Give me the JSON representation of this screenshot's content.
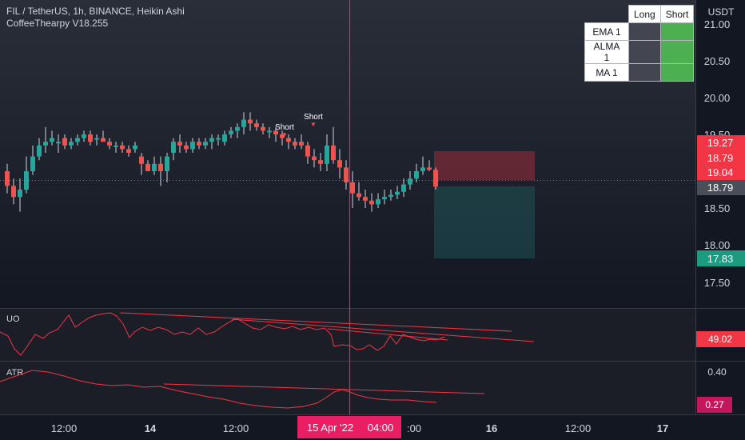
{
  "header": {
    "symbol": "FIL / TetherUS, 1h, BINANCE, Heikin Ashi",
    "indicator": "CoffeeThearpy V18.255"
  },
  "signal_table": {
    "headers": [
      "Long",
      "Short"
    ],
    "rows": [
      {
        "label": "EMA 1",
        "long": "neutral",
        "short": "active"
      },
      {
        "label": "ALMA 1",
        "long": "neutral",
        "short": "active"
      },
      {
        "label": "MA 1",
        "long": "neutral",
        "short": "active"
      }
    ]
  },
  "price_axis": {
    "unit": "USDT",
    "ticks": [
      "21.00",
      "20.50",
      "20.00",
      "19.50",
      "18.50",
      "18.00",
      "17.50"
    ]
  },
  "price_badges": [
    {
      "value": "19.27",
      "color": "#f23645"
    },
    {
      "value": "18.79",
      "color": "#f23645"
    },
    {
      "value": "19.04",
      "color": "#f23645"
    },
    {
      "value": "18.79",
      "color": "#4a4e59"
    },
    {
      "value": "17.83",
      "color": "#1e9a80"
    }
  ],
  "signals": [
    {
      "label": "Short"
    },
    {
      "label": "Short"
    }
  ],
  "panes": {
    "uo": {
      "title": "UO",
      "value": "49.02",
      "color": "#f23645"
    },
    "atr": {
      "title": "ATR",
      "tick": "0.40",
      "value": "0.27",
      "color": "#c2185b"
    }
  },
  "time_axis": {
    "ticks": [
      "12:00",
      "14",
      "12:00",
      "04:00",
      ":00",
      "16",
      "12:00",
      "17"
    ],
    "crosshair_label": "15 Apr '22"
  },
  "colors": {
    "up": "#26a69a",
    "down": "#ef5350",
    "crosshair": "#e91e63",
    "background": "#131722"
  },
  "chart_data": {
    "type": "candlestick",
    "title": "FIL / TetherUS, 1h, BINANCE, Heikin Ashi",
    "xlabel": "",
    "ylabel": "USDT",
    "ylim": [
      17.3,
      21.2
    ],
    "current_price": 18.79,
    "position": {
      "side": "short",
      "entry": 19.04,
      "stop": 19.27,
      "target": 17.83
    },
    "candles": [
      [
        19.0,
        19.1,
        18.7,
        18.8
      ],
      [
        18.8,
        18.9,
        18.55,
        18.65
      ],
      [
        18.65,
        18.9,
        18.45,
        18.75
      ],
      [
        18.75,
        19.2,
        18.7,
        19.0
      ],
      [
        19.0,
        19.35,
        18.95,
        19.2
      ],
      [
        19.2,
        19.45,
        19.15,
        19.35
      ],
      [
        19.35,
        19.6,
        19.25,
        19.4
      ],
      [
        19.4,
        19.55,
        19.35,
        19.45
      ],
      [
        19.4,
        19.5,
        19.25,
        19.4
      ],
      [
        19.45,
        19.5,
        19.3,
        19.35
      ],
      [
        19.35,
        19.45,
        19.3,
        19.4
      ],
      [
        19.4,
        19.5,
        19.35,
        19.45
      ],
      [
        19.45,
        19.55,
        19.4,
        19.5
      ],
      [
        19.5,
        19.55,
        19.35,
        19.4
      ],
      [
        19.45,
        19.5,
        19.35,
        19.45
      ],
      [
        19.45,
        19.55,
        19.4,
        19.4
      ],
      [
        19.4,
        19.45,
        19.3,
        19.35
      ],
      [
        19.35,
        19.4,
        19.25,
        19.35
      ],
      [
        19.35,
        19.4,
        19.25,
        19.3
      ],
      [
        19.3,
        19.35,
        19.2,
        19.25
      ],
      [
        19.3,
        19.4,
        19.25,
        19.35
      ],
      [
        19.2,
        19.25,
        18.95,
        19.1
      ],
      [
        19.1,
        19.15,
        19.0,
        19.0
      ],
      [
        19.0,
        19.2,
        18.95,
        19.1
      ],
      [
        19.1,
        19.2,
        18.8,
        19.0
      ],
      [
        19.0,
        19.25,
        18.85,
        19.2
      ],
      [
        19.25,
        19.45,
        19.15,
        19.4
      ],
      [
        19.4,
        19.5,
        19.25,
        19.35
      ],
      [
        19.35,
        19.4,
        19.25,
        19.3
      ],
      [
        19.3,
        19.45,
        19.25,
        19.4
      ],
      [
        19.4,
        19.45,
        19.3,
        19.35
      ],
      [
        19.35,
        19.45,
        19.3,
        19.4
      ],
      [
        19.4,
        19.5,
        19.3,
        19.45
      ],
      [
        19.45,
        19.5,
        19.35,
        19.45
      ],
      [
        19.4,
        19.55,
        19.35,
        19.5
      ],
      [
        19.5,
        19.6,
        19.45,
        19.55
      ],
      [
        19.55,
        19.65,
        19.45,
        19.6
      ],
      [
        19.6,
        19.8,
        19.5,
        19.7
      ],
      [
        19.7,
        19.8,
        19.55,
        19.65
      ],
      [
        19.65,
        19.7,
        19.55,
        19.6
      ],
      [
        19.6,
        19.65,
        19.5,
        19.55
      ],
      [
        19.55,
        19.6,
        19.45,
        19.55
      ],
      [
        19.55,
        19.6,
        19.4,
        19.5
      ],
      [
        19.5,
        19.55,
        19.35,
        19.45
      ],
      [
        19.45,
        19.5,
        19.3,
        19.4
      ],
      [
        19.4,
        19.45,
        19.3,
        19.35
      ],
      [
        19.4,
        19.5,
        19.3,
        19.35
      ],
      [
        19.35,
        19.4,
        19.1,
        19.2
      ],
      [
        19.2,
        19.3,
        19.05,
        19.15
      ],
      [
        19.15,
        19.25,
        19.0,
        19.1
      ],
      [
        19.1,
        19.5,
        19.0,
        19.35
      ],
      [
        19.35,
        19.6,
        19.1,
        19.15
      ],
      [
        19.15,
        19.3,
        18.9,
        19.05
      ],
      [
        19.05,
        19.15,
        18.75,
        18.85
      ],
      [
        18.85,
        19.0,
        18.5,
        18.7
      ],
      [
        18.7,
        18.85,
        18.6,
        18.65
      ],
      [
        18.65,
        18.75,
        18.5,
        18.6
      ],
      [
        18.6,
        18.7,
        18.45,
        18.55
      ],
      [
        18.55,
        18.7,
        18.5,
        18.62
      ],
      [
        18.62,
        18.75,
        18.55,
        18.65
      ],
      [
        18.65,
        18.75,
        18.6,
        18.68
      ],
      [
        18.68,
        18.8,
        18.62,
        18.72
      ],
      [
        18.72,
        18.9,
        18.65,
        18.82
      ],
      [
        18.82,
        19.0,
        18.75,
        18.9
      ],
      [
        18.9,
        19.1,
        18.85,
        19.0
      ],
      [
        19.0,
        19.2,
        18.95,
        19.05
      ],
      [
        19.05,
        19.15,
        19.0,
        19.02
      ],
      [
        19.02,
        19.05,
        18.75,
        18.79
      ]
    ]
  }
}
